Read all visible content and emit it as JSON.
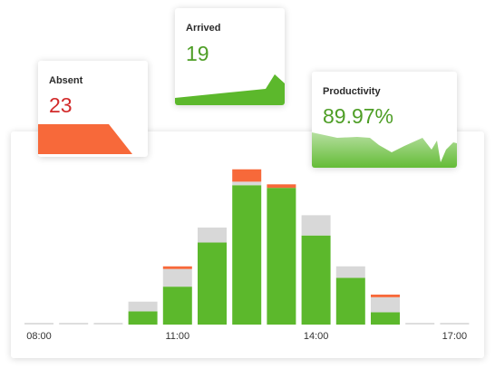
{
  "colors": {
    "present": "#5cb82c",
    "absent": "#f7693a",
    "pending": "#d8d8d8",
    "empty": "#dedede",
    "green_text": "#4e9e26",
    "red_text": "#d22a2a"
  },
  "cards": {
    "absent": {
      "label": "Absent",
      "value": "23"
    },
    "arrived": {
      "label": "Arrived",
      "value": "19"
    },
    "productivity": {
      "label": "Productivity",
      "value": "89.97%"
    }
  },
  "chart_data": {
    "type": "bar",
    "stacked": true,
    "x_tick_labels": [
      "08:00",
      "11:00",
      "14:00",
      "17:00"
    ],
    "tick_category_indices": [
      0,
      4,
      8,
      12
    ],
    "category_count": 13,
    "series": [
      {
        "name": "present",
        "values": [
          0,
          0,
          0,
          15,
          43,
          93,
          158,
          155,
          101,
          53,
          14,
          0,
          0
        ]
      },
      {
        "name": "pending",
        "values": [
          0,
          0,
          0,
          11,
          20,
          17,
          4,
          0,
          23,
          13,
          17,
          0,
          0
        ]
      },
      {
        "name": "absent",
        "values": [
          0,
          0,
          0,
          0,
          3,
          0,
          14,
          4,
          0,
          0,
          3,
          0,
          0
        ]
      }
    ],
    "ylim": [
      0,
      185
    ],
    "grid": false
  }
}
